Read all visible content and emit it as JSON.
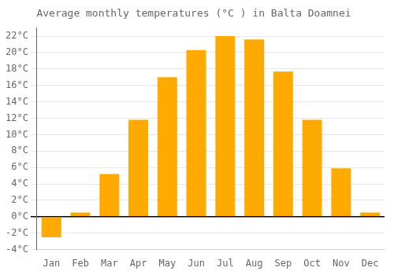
{
  "chart_data": {
    "type": "bar",
    "title": "Average monthly temperatures (°C ) in Balta Doamnei",
    "categories": [
      "Jan",
      "Feb",
      "Mar",
      "Apr",
      "May",
      "Jun",
      "Jul",
      "Aug",
      "Sep",
      "Oct",
      "Nov",
      "Dec"
    ],
    "values": [
      -2.5,
      0.5,
      5.2,
      11.8,
      17.0,
      20.3,
      22.0,
      21.6,
      17.7,
      11.8,
      5.9,
      0.5
    ],
    "color": "#FFAA00",
    "ylim": [
      -4,
      23
    ],
    "yticks": [
      {
        "value": -4,
        "label": "-4°C"
      },
      {
        "value": -2,
        "label": "-2°C"
      },
      {
        "value": 0,
        "label": "0°C"
      },
      {
        "value": 2,
        "label": "2°C"
      },
      {
        "value": 4,
        "label": "4°C"
      },
      {
        "value": 6,
        "label": "6°C"
      },
      {
        "value": 8,
        "label": "8°C"
      },
      {
        "value": 10,
        "label": "10°C"
      },
      {
        "value": 12,
        "label": "12°C"
      },
      {
        "value": 14,
        "label": "14°C"
      },
      {
        "value": 16,
        "label": "16°C"
      },
      {
        "value": 18,
        "label": "18°C"
      },
      {
        "value": 20,
        "label": "20°C"
      },
      {
        "value": 22,
        "label": "22°C"
      }
    ],
    "grid": true
  }
}
